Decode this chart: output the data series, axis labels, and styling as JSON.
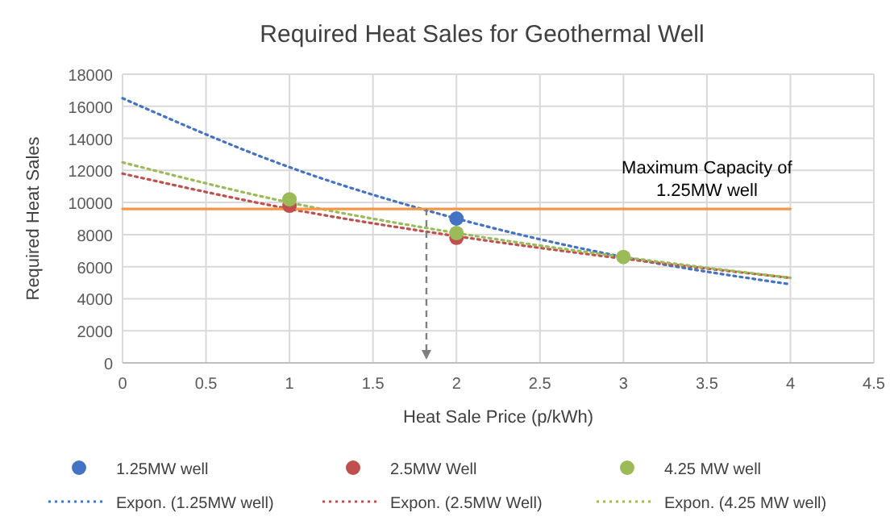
{
  "chart_data": {
    "type": "scatter",
    "title": "Required Heat Sales for Geothermal Well",
    "xlabel": "Heat Sale Price (p/kWh)",
    "ylabel": "Required Heat Sales",
    "xlim": [
      0,
      4.5
    ],
    "xticks": [
      0,
      0.5,
      1,
      1.5,
      2,
      2.5,
      3,
      3.5,
      4,
      4.5
    ],
    "ylim": [
      0,
      18000
    ],
    "yticks": [
      0,
      2000,
      4000,
      6000,
      8000,
      10000,
      12000,
      14000,
      16000,
      18000
    ],
    "grid": true,
    "legend": "bottom",
    "marker": "circle",
    "series": [
      {
        "name": "1.25MW well",
        "color": "#4472c4",
        "x": [
          2
        ],
        "values": [
          9000
        ]
      },
      {
        "name": "2.5MW Well",
        "color": "#c0504d",
        "x": [
          1,
          2
        ],
        "values": [
          9800,
          7800
        ]
      },
      {
        "name": "4.25 MW well",
        "color": "#9bbb59",
        "x": [
          1,
          2,
          3
        ],
        "values": [
          10200,
          8100,
          6600
        ]
      },
      {
        "name": "Expon. (1.25MW well)",
        "type": "line",
        "line_style": "dotted",
        "marker": "none",
        "color": "#4472c4",
        "x": [
          0,
          1,
          2,
          3,
          4
        ],
        "values": [
          16500,
          12200,
          9000,
          6600,
          4900
        ]
      },
      {
        "name": "Expon. (2.5MW Well)",
        "type": "line",
        "line_style": "dotted",
        "marker": "none",
        "color": "#c0504d",
        "x": [
          0,
          1,
          2,
          3,
          4
        ],
        "values": [
          11800,
          9600,
          7900,
          6500,
          5300
        ]
      },
      {
        "name": "Expon. (4.25 MW well)",
        "type": "line",
        "line_style": "dotted",
        "marker": "none",
        "color": "#9bbb59",
        "x": [
          0,
          1,
          2,
          3,
          4
        ],
        "values": [
          12500,
          10000,
          8100,
          6600,
          5300
        ]
      },
      {
        "type": "line",
        "line_style": "solid",
        "marker": "none",
        "color": "#f79646",
        "x": [
          0,
          4
        ],
        "values": [
          9600,
          9600
        ]
      }
    ],
    "ref_lines": [
      {
        "axis": "x",
        "value": 1.82,
        "line_style": "dashed",
        "color": "#7f7f7f"
      }
    ],
    "annotations": [
      {
        "text": "Maximum Capacity of 1.25MW well",
        "x": 3.5,
        "y": 9600
      }
    ]
  }
}
